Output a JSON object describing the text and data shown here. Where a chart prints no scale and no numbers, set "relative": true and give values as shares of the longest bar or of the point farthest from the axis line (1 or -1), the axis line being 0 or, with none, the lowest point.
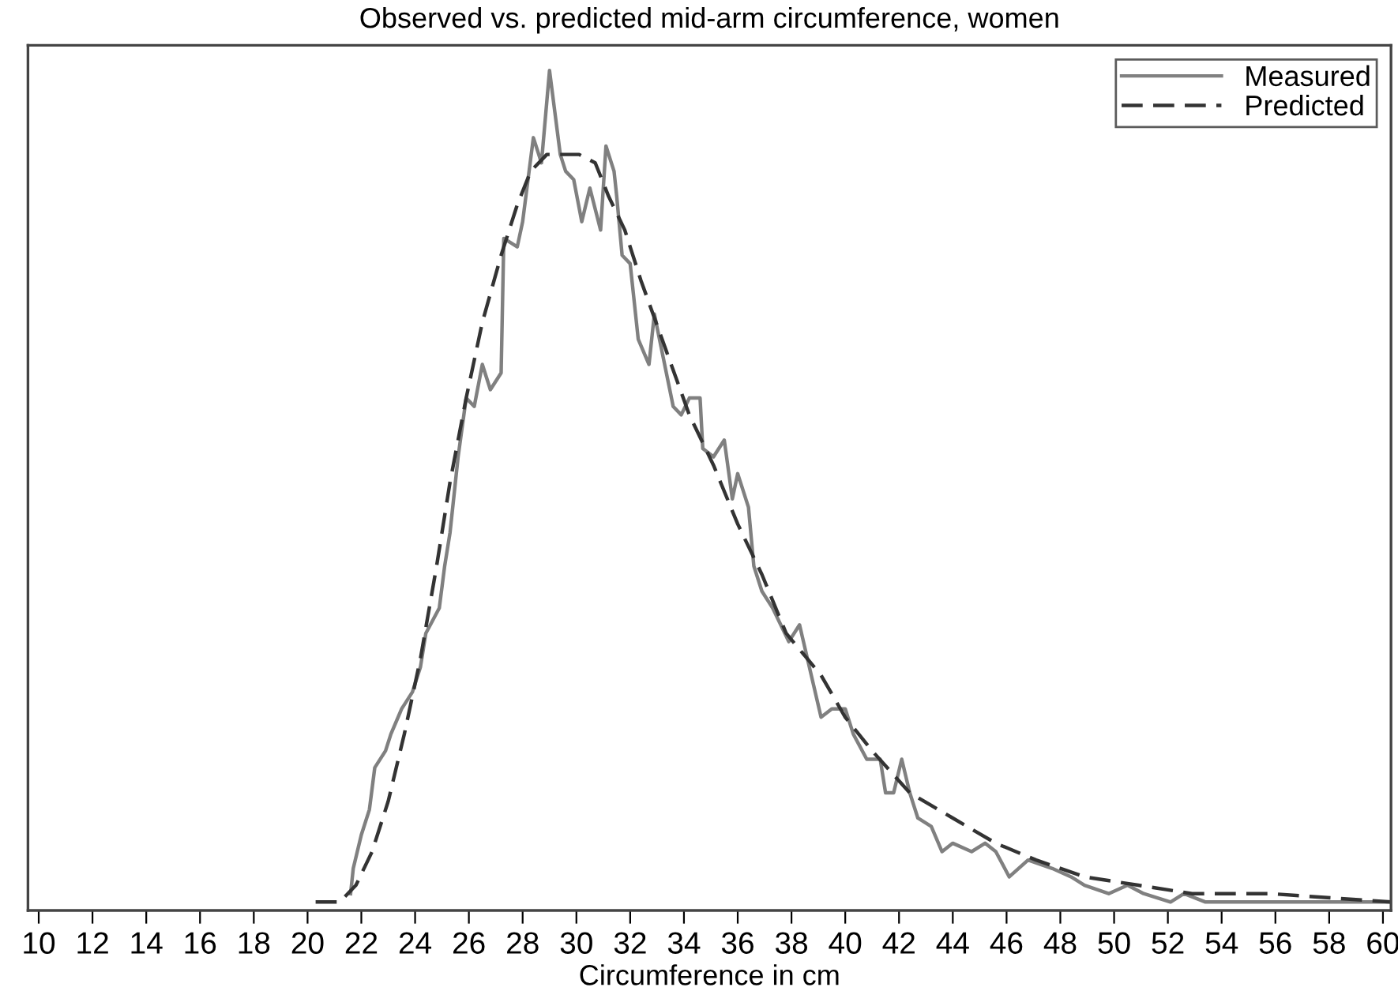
{
  "chart_data": {
    "type": "line",
    "title": "Observed vs. predicted mid-arm circumference, women",
    "xlabel": "Circumference in cm",
    "relative": true,
    "xlim": [
      9.6,
      60.3
    ],
    "xticks": [
      10,
      12,
      14,
      16,
      18,
      20,
      22,
      24,
      26,
      28,
      30,
      32,
      34,
      36,
      38,
      40,
      42,
      44,
      46,
      48,
      50,
      52,
      54,
      56,
      58,
      60
    ],
    "legend": "top right",
    "grid": false,
    "tick_labels": "x",
    "series": [
      {
        "name": "Measured",
        "color": "#808080",
        "line_style": "solid",
        "x": [
          21.6,
          21.7,
          22.0,
          22.3,
          22.5,
          22.9,
          23.1,
          23.5,
          23.9,
          24.2,
          24.4,
          24.9,
          25.1,
          25.3,
          25.6,
          25.9,
          26.2,
          26.5,
          26.8,
          27.2,
          27.3,
          27.8,
          28.0,
          28.4,
          28.7,
          29.0,
          29.4,
          29.6,
          29.9,
          30.2,
          30.5,
          30.9,
          31.1,
          31.4,
          31.5,
          31.7,
          32.0,
          32.3,
          32.7,
          32.9,
          33.6,
          33.9,
          34.2,
          34.6,
          34.7,
          35.1,
          35.5,
          35.8,
          36.0,
          36.4,
          36.6,
          36.9,
          37.3,
          37.9,
          38.3,
          39.1,
          39.5,
          40.0,
          40.3,
          40.8,
          41.3,
          41.5,
          41.8,
          42.1,
          42.4,
          42.7,
          43.2,
          43.6,
          44.0,
          44.7,
          45.2,
          45.6,
          46.1,
          46.8,
          47.7,
          48.4,
          48.9,
          49.8,
          50.5,
          51.1,
          52.1,
          52.6,
          53.4,
          55.0,
          55.8,
          56.8,
          60.3
        ],
        "values": [
          0.02,
          0.05,
          0.09,
          0.12,
          0.17,
          0.19,
          0.21,
          0.24,
          0.26,
          0.29,
          0.33,
          0.36,
          0.41,
          0.45,
          0.54,
          0.61,
          0.6,
          0.65,
          0.62,
          0.64,
          0.8,
          0.79,
          0.82,
          0.92,
          0.89,
          1.0,
          0.9,
          0.88,
          0.87,
          0.82,
          0.86,
          0.81,
          0.91,
          0.88,
          0.85,
          0.78,
          0.77,
          0.68,
          0.65,
          0.71,
          0.6,
          0.59,
          0.61,
          0.61,
          0.55,
          0.54,
          0.56,
          0.49,
          0.52,
          0.48,
          0.41,
          0.38,
          0.36,
          0.32,
          0.34,
          0.23,
          0.24,
          0.24,
          0.21,
          0.18,
          0.18,
          0.14,
          0.14,
          0.18,
          0.14,
          0.11,
          0.1,
          0.07,
          0.08,
          0.07,
          0.08,
          0.07,
          0.04,
          0.06,
          0.05,
          0.04,
          0.03,
          0.02,
          0.03,
          0.02,
          0.01,
          0.02,
          0.01,
          0.01,
          0.01,
          0.01,
          0.01
        ]
      },
      {
        "name": "Predicted",
        "color": "#333333",
        "line_style": "dashed",
        "x": [
          20.3,
          21.2,
          21.8,
          22.4,
          23.0,
          23.6,
          24.2,
          24.8,
          25.3,
          25.9,
          26.5,
          27.2,
          27.8,
          28.3,
          28.9,
          29.5,
          30.1,
          30.7,
          31.2,
          31.8,
          32.4,
          33.3,
          34.2,
          35.1,
          36.0,
          36.9,
          37.8,
          39.1,
          40.0,
          41.0,
          42.4,
          44.0,
          45.6,
          47.1,
          48.9,
          50.9,
          52.9,
          55.8,
          60.3
        ],
        "values": [
          0.01,
          0.01,
          0.03,
          0.07,
          0.13,
          0.21,
          0.3,
          0.41,
          0.51,
          0.61,
          0.7,
          0.78,
          0.84,
          0.88,
          0.9,
          0.9,
          0.9,
          0.89,
          0.85,
          0.81,
          0.75,
          0.67,
          0.59,
          0.53,
          0.46,
          0.4,
          0.33,
          0.28,
          0.23,
          0.19,
          0.14,
          0.11,
          0.08,
          0.06,
          0.04,
          0.03,
          0.02,
          0.02,
          0.01
        ]
      }
    ]
  }
}
